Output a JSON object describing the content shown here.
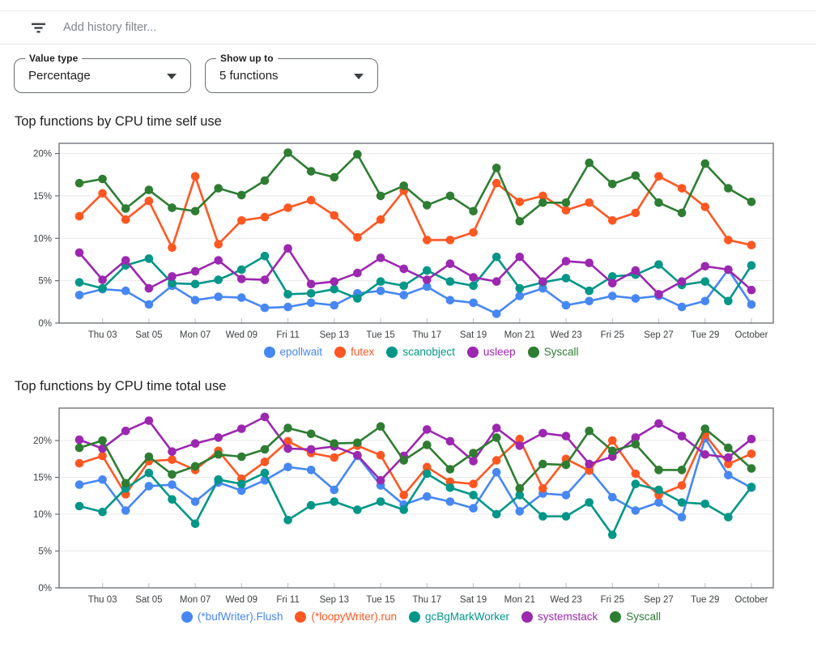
{
  "filter": {
    "placeholder": "Add history filter...",
    "icon": "filter-list-icon"
  },
  "controls": {
    "value_type": {
      "label": "Value type",
      "value": "Percentage"
    },
    "show_up_to": {
      "label": "Show up to",
      "value": "5 functions"
    }
  },
  "palette": {
    "blue": "#4687f4",
    "orange": "#ff5722",
    "teal": "#009688",
    "purple": "#9c27b0",
    "green": "#2e7d32"
  },
  "chart_data": [
    {
      "id": "cpu-self",
      "type": "line",
      "title": "Top functions by CPU time self use",
      "xlabel": "",
      "ylabel": "",
      "grid": true,
      "legend_position": "bottom",
      "marker": "circle",
      "ylim": [
        0,
        21.2
      ],
      "y_ticks": [
        "0%",
        "5%",
        "10%",
        "15%",
        "20%"
      ],
      "y_tick_values": [
        0,
        5,
        10,
        15,
        20
      ],
      "x_tick_labels": [
        "Thu 03",
        "Sat 05",
        "Mon 07",
        "Wed 09",
        "Fri 11",
        "Sep 13",
        "Tue 15",
        "Thu 17",
        "Sat 19",
        "Mon 21",
        "Wed 23",
        "Fri 25",
        "Sep 27",
        "Tue 29",
        "October"
      ],
      "x_tick_indices": [
        1,
        3,
        5,
        7,
        9,
        11,
        13,
        15,
        17,
        19,
        21,
        23,
        25,
        27,
        29
      ],
      "series": [
        {
          "name": "epollwait",
          "color": "#4687f4",
          "values": [
            3.3,
            4.0,
            3.8,
            2.2,
            4.4,
            2.7,
            3.1,
            3.0,
            1.8,
            1.9,
            2.4,
            2.1,
            3.5,
            3.8,
            3.3,
            4.3,
            2.7,
            2.4,
            1.1,
            3.2,
            4.1,
            2.1,
            2.6,
            3.2,
            2.9,
            3.2,
            1.9,
            2.6,
            6.3,
            2.2
          ]
        },
        {
          "name": "futex",
          "color": "#ff5722",
          "values": [
            12.6,
            15.3,
            12.2,
            14.4,
            8.9,
            17.3,
            9.3,
            12.1,
            12.5,
            13.6,
            14.5,
            12.7,
            10.1,
            12.2,
            15.6,
            9.8,
            9.8,
            10.7,
            16.5,
            14.3,
            15.0,
            13.3,
            14.2,
            12.1,
            13.0,
            17.3,
            15.9,
            13.7,
            9.8,
            9.2
          ]
        },
        {
          "name": "scanobject",
          "color": "#009688",
          "values": [
            4.8,
            4.1,
            6.8,
            7.6,
            4.7,
            4.6,
            5.1,
            6.3,
            7.9,
            3.4,
            3.5,
            4.0,
            2.9,
            4.9,
            4.4,
            6.2,
            4.9,
            4.4,
            7.8,
            4.1,
            4.8,
            5.3,
            3.8,
            5.5,
            5.7,
            6.9,
            4.5,
            4.9,
            2.6,
            6.8
          ]
        },
        {
          "name": "usleep",
          "color": "#9c27b0",
          "values": [
            8.3,
            5.1,
            7.4,
            4.1,
            5.5,
            6.1,
            7.4,
            5.2,
            5.1,
            8.8,
            4.6,
            4.9,
            5.9,
            7.7,
            6.4,
            5.1,
            7.0,
            5.4,
            4.9,
            7.8,
            4.9,
            7.3,
            7.1,
            4.7,
            6.2,
            3.4,
            4.9,
            6.7,
            6.3,
            3.9
          ]
        },
        {
          "name": "Syscall",
          "color": "#2e7d32",
          "values": [
            16.5,
            17.0,
            13.5,
            15.7,
            13.6,
            13.2,
            15.9,
            15.1,
            16.8,
            20.1,
            17.9,
            17.2,
            19.9,
            15.0,
            16.2,
            13.9,
            15.0,
            13.2,
            18.3,
            12.0,
            14.2,
            14.2,
            18.9,
            16.4,
            17.4,
            14.2,
            13.0,
            18.8,
            15.9,
            14.3
          ]
        }
      ]
    },
    {
      "id": "cpu-total",
      "type": "line",
      "title": "Top functions by CPU time total use",
      "xlabel": "",
      "ylabel": "",
      "grid": true,
      "legend_position": "bottom",
      "marker": "circle",
      "ylim": [
        0,
        24.4
      ],
      "y_ticks": [
        "0%",
        "5%",
        "10%",
        "15%",
        "20%"
      ],
      "y_tick_values": [
        0,
        5,
        10,
        15,
        20
      ],
      "x_tick_labels": [
        "Thu 03",
        "Sat 05",
        "Mon 07",
        "Wed 09",
        "Fri 11",
        "Sep 13",
        "Tue 15",
        "Thu 17",
        "Sat 19",
        "Mon 21",
        "Wed 23",
        "Fri 25",
        "Sep 27",
        "Tue 29",
        "October"
      ],
      "x_tick_indices": [
        1,
        3,
        5,
        7,
        9,
        11,
        13,
        15,
        17,
        19,
        21,
        23,
        25,
        27,
        29
      ],
      "series": [
        {
          "name": "(*bufWriter).Flush",
          "color": "#4687f4",
          "values": [
            14.0,
            14.7,
            10.5,
            13.8,
            14.0,
            11.7,
            14.3,
            13.2,
            14.6,
            16.4,
            16.0,
            13.3,
            17.9,
            13.9,
            11.3,
            12.4,
            11.7,
            10.8,
            15.7,
            10.4,
            12.8,
            12.6,
            16.1,
            12.3,
            10.5,
            11.6,
            9.6,
            20.3,
            15.3,
            13.6
          ]
        },
        {
          "name": "(*loopyWriter).run",
          "color": "#ff5722",
          "values": [
            16.9,
            17.9,
            12.7,
            17.2,
            17.4,
            16.0,
            18.6,
            14.8,
            17.1,
            19.9,
            18.3,
            17.7,
            19.3,
            18.0,
            12.6,
            16.4,
            14.4,
            14.1,
            17.3,
            20.2,
            13.5,
            17.5,
            15.9,
            20.0,
            15.5,
            12.6,
            13.9,
            20.8,
            16.8,
            18.2
          ]
        },
        {
          "name": "gcBgMarkWorker",
          "color": "#009688",
          "values": [
            11.1,
            10.3,
            13.5,
            15.6,
            12.0,
            8.7,
            14.7,
            14.1,
            15.6,
            9.2,
            11.2,
            11.7,
            10.6,
            11.7,
            10.6,
            15.5,
            13.6,
            12.6,
            10.0,
            12.6,
            9.7,
            9.7,
            11.6,
            7.2,
            14.1,
            13.3,
            11.6,
            11.4,
            9.6,
            13.7
          ]
        },
        {
          "name": "systemstack",
          "color": "#9c27b0",
          "values": [
            20.1,
            18.9,
            21.3,
            22.7,
            18.5,
            19.6,
            20.4,
            21.6,
            23.2,
            18.9,
            18.8,
            19.2,
            18.0,
            14.6,
            17.9,
            21.5,
            19.9,
            17.2,
            21.7,
            19.3,
            21.0,
            20.6,
            16.8,
            17.8,
            20.4,
            22.3,
            20.6,
            18.1,
            17.7,
            20.2
          ]
        },
        {
          "name": "Syscall",
          "color": "#2e7d32",
          "values": [
            19.0,
            20.0,
            14.2,
            17.8,
            15.4,
            16.5,
            18.1,
            17.8,
            18.8,
            21.7,
            20.9,
            19.6,
            19.7,
            21.9,
            17.3,
            19.4,
            16.1,
            18.3,
            20.4,
            13.5,
            16.8,
            16.7,
            21.3,
            18.6,
            19.5,
            16.0,
            16.0,
            21.6,
            19.0,
            16.2
          ]
        }
      ]
    }
  ]
}
